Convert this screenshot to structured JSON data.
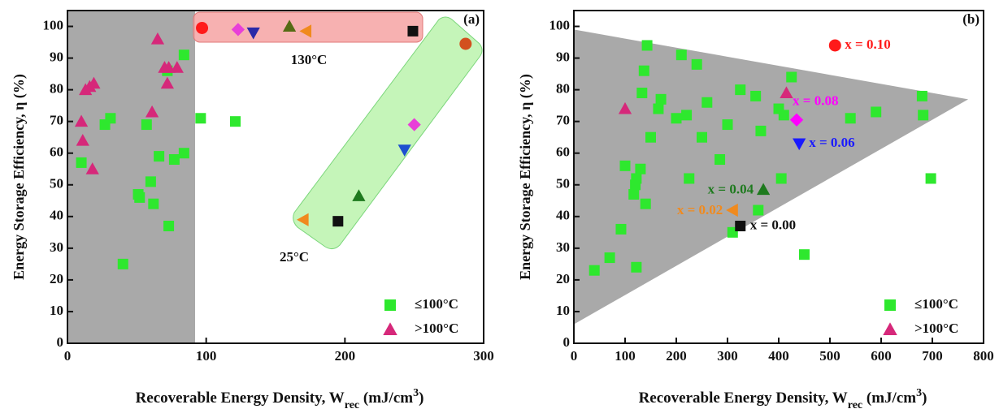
{
  "chart_data": [
    {
      "type": "scatter",
      "panel_label": "(a)",
      "x_label": [
        "Recoverable Energy Density, W",
        "rec",
        " (mJ/cm",
        "3",
        ")"
      ],
      "y_label": "Energy Storage Efficiency, η (%)",
      "xlim": [
        0,
        300
      ],
      "xticks": [
        0,
        100,
        200,
        300
      ],
      "ylim": [
        0,
        105
      ],
      "yticks": [
        0,
        10,
        20,
        30,
        40,
        50,
        60,
        70,
        80,
        90,
        100
      ],
      "shaded_x": [
        0,
        92
      ],
      "annotations": [
        "130°C",
        "25°C"
      ],
      "legend": "lower right",
      "series": [
        {
          "name": "≤100°C",
          "marker": "square",
          "color": "#2ee82e",
          "x": [
            10,
            27,
            31,
            40,
            51,
            52,
            57,
            60,
            62,
            66,
            73,
            77,
            84,
            84,
            72,
            96,
            121
          ],
          "y": [
            57,
            69,
            71,
            25,
            47,
            46,
            69,
            51,
            44,
            59,
            37,
            58,
            60,
            91,
            86,
            71,
            70
          ]
        },
        {
          "name": ">100°C",
          "marker": "tri-up",
          "color": "#d6287a",
          "x": [
            10,
            11,
            13,
            16,
            18,
            19,
            61,
            65,
            70,
            72,
            73,
            79
          ],
          "y": [
            70,
            64,
            80,
            81,
            55,
            82,
            73,
            96,
            87,
            82,
            87,
            87
          ]
        },
        {
          "marker": "circle",
          "color": "#ff1a1a",
          "x": [
            97
          ],
          "y": [
            99.5
          ]
        },
        {
          "marker": "diamond",
          "color": "#e83fd8",
          "x": [
            123,
            250
          ],
          "y": [
            99,
            69
          ]
        },
        {
          "marker": "tri-down",
          "color": "#2a2aa8",
          "x": [
            134
          ],
          "y": [
            98
          ]
        },
        {
          "marker": "tri-up",
          "color": "#556b14",
          "x": [
            160
          ],
          "y": [
            100
          ]
        },
        {
          "marker": "tri-left",
          "color": "#f08a1e",
          "x": [
            172,
            170
          ],
          "y": [
            98.5,
            39
          ]
        },
        {
          "marker": "square",
          "color": "#111111",
          "x": [
            249,
            195
          ],
          "y": [
            98.5,
            38.5
          ]
        },
        {
          "marker": "tri-up",
          "color": "#1e7a1e",
          "x": [
            210
          ],
          "y": [
            46.5
          ]
        },
        {
          "marker": "tri-down",
          "color": "#1e4fd0",
          "x": [
            243
          ],
          "y": [
            61
          ]
        },
        {
          "marker": "circle",
          "color": "#d2501e",
          "x": [
            287
          ],
          "y": [
            94.5
          ]
        }
      ]
    },
    {
      "type": "scatter",
      "panel_label": "(b)",
      "x_label": [
        "Recoverable Energy Density, W",
        "rec",
        " (mJ/cm",
        "3",
        ")"
      ],
      "y_label": "Energy Storage Efficiency, η (%)",
      "xlim": [
        0,
        800
      ],
      "xticks": [
        0,
        100,
        200,
        300,
        400,
        500,
        600,
        700,
        800
      ],
      "ylim": [
        0,
        105
      ],
      "yticks": [
        0,
        10,
        20,
        30,
        40,
        50,
        60,
        70,
        80,
        90,
        100
      ],
      "shaded_polygon": [
        [
          0,
          99
        ],
        [
          770,
          77
        ],
        [
          0,
          6
        ]
      ],
      "legend": "lower right",
      "series": [
        {
          "name": "≤100°C",
          "marker": "square",
          "color": "#2ee82e",
          "x": [
            40,
            70,
            92,
            100,
            117,
            120,
            122,
            122,
            130,
            133,
            137,
            140,
            143,
            150,
            165,
            170,
            200,
            210,
            220,
            225,
            240,
            250,
            260,
            285,
            300,
            310,
            325,
            355,
            360,
            365,
            400,
            405,
            410,
            425,
            450,
            540,
            590,
            680,
            682,
            697
          ],
          "y": [
            23,
            27,
            36,
            56,
            47,
            50,
            52,
            24,
            55,
            79,
            86,
            44,
            94,
            65,
            74,
            77,
            71,
            91,
            72,
            52,
            88,
            65,
            76,
            58,
            69,
            35,
            80,
            78,
            42,
            67,
            74,
            52,
            72,
            84,
            28,
            71,
            73,
            78,
            72,
            52
          ]
        },
        {
          "name": ">100°C",
          "marker": "tri-up",
          "color": "#d6287a",
          "x": [
            100,
            415
          ],
          "y": [
            74,
            79
          ]
        },
        {
          "label": "x = 0.10",
          "marker": "circle",
          "color": "#ff1a1a",
          "x": [
            510
          ],
          "y": [
            94
          ]
        },
        {
          "label": "x = 0.08",
          "marker": "diamond",
          "color": "#ff00ff",
          "x": [
            435
          ],
          "y": [
            70.5
          ]
        },
        {
          "label": "x = 0.06",
          "marker": "tri-down",
          "color": "#1a1aff",
          "x": [
            440
          ],
          "y": [
            63
          ]
        },
        {
          "label": "x = 0.04",
          "marker": "tri-up",
          "color": "#1e7a1e",
          "x": [
            370
          ],
          "y": [
            48.5
          ]
        },
        {
          "label": "x = 0.02",
          "marker": "tri-left",
          "color": "#f08a1e",
          "x": [
            310
          ],
          "y": [
            42
          ]
        },
        {
          "label": "x = 0.00",
          "marker": "square",
          "color": "#111111",
          "x": [
            325
          ],
          "y": [
            37
          ]
        }
      ]
    }
  ]
}
